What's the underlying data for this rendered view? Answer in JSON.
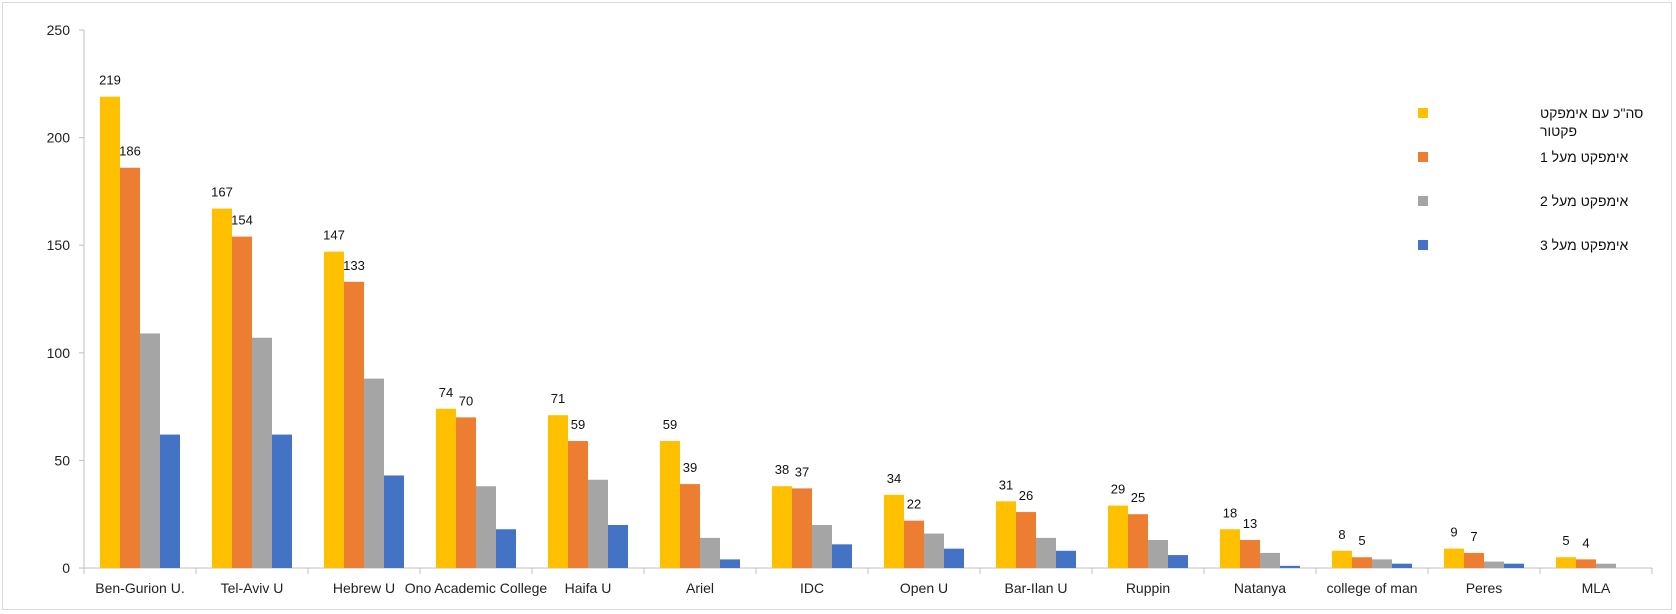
{
  "chart_data": {
    "type": "bar",
    "title": "",
    "xlabel": "",
    "ylabel": "",
    "ylim": [
      0,
      250
    ],
    "yticks": [
      0,
      50,
      100,
      150,
      200,
      250
    ],
    "grid": false,
    "legend_position": "right",
    "categories": [
      "Ben-Gurion U.",
      "Tel-Aviv U",
      "Hebrew U",
      "Ono Academic College",
      "Haifa U",
      "Ariel",
      "IDC",
      "Open U",
      "Bar-Ilan U",
      "Ruppin",
      "Natanya",
      "college of man",
      "Peres",
      "MLA"
    ],
    "series": [
      {
        "name": "סה\"כ עם אימפקט פקטור",
        "color": "#FFC000",
        "values": [
          219,
          167,
          147,
          74,
          71,
          59,
          38,
          34,
          31,
          29,
          18,
          8,
          9,
          5
        ],
        "labeled": true
      },
      {
        "name": "אימפקט מעל 1",
        "color": "#ED7D31",
        "values": [
          186,
          154,
          133,
          70,
          59,
          39,
          37,
          22,
          26,
          25,
          13,
          5,
          7,
          4
        ],
        "labeled": true
      },
      {
        "name": "אימפקט מעל 2",
        "color": "#A5A5A5",
        "values": [
          109,
          107,
          88,
          38,
          41,
          14,
          20,
          16,
          14,
          13,
          7,
          4,
          3,
          2
        ],
        "labeled": false
      },
      {
        "name": "אימפקט מעל 3",
        "color": "#4472C4",
        "values": [
          62,
          62,
          43,
          18,
          20,
          4,
          11,
          9,
          8,
          6,
          1,
          2,
          2,
          0
        ],
        "labeled": false
      }
    ],
    "legend": [
      {
        "lines": [
          "סה\"כ עם אימפקט",
          "פקטור"
        ],
        "color": "#FFC000"
      },
      {
        "lines": [
          "אימפקט מעל 1"
        ],
        "color": "#ED7D31"
      },
      {
        "lines": [
          "אימפקט מעל 2"
        ],
        "color": "#A5A5A5"
      },
      {
        "lines": [
          "אימפקט מעל 3"
        ],
        "color": "#4472C4"
      }
    ]
  }
}
